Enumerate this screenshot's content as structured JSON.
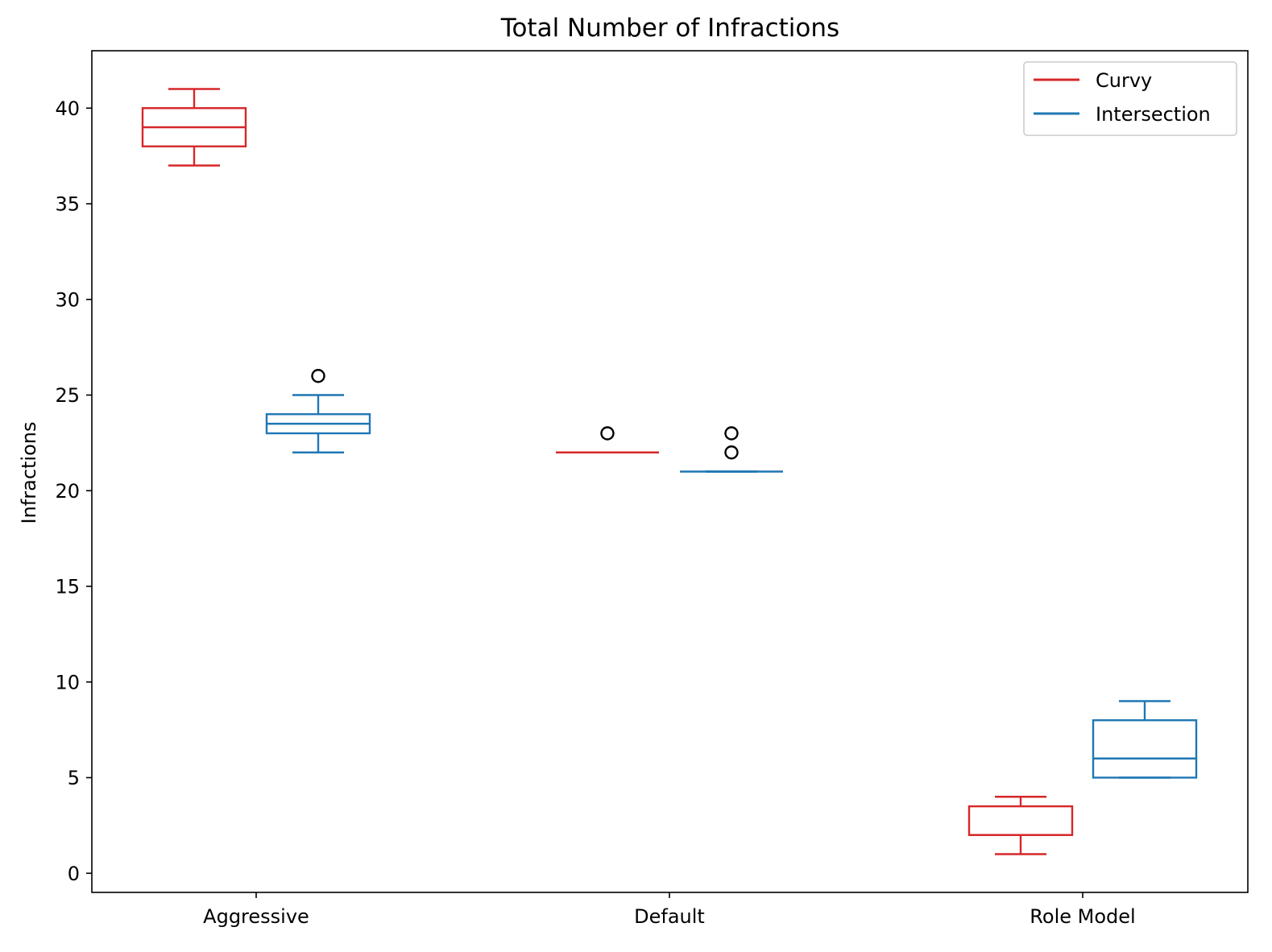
{
  "chart_data": {
    "type": "box",
    "title": "Total Number of Infractions",
    "xlabel": "",
    "ylabel": "Infractions",
    "categories": [
      "Aggressive",
      "Default",
      "Role Model"
    ],
    "ylim": [
      -1,
      43
    ],
    "yticks": [
      0,
      5,
      10,
      15,
      20,
      25,
      30,
      35,
      40
    ],
    "grid": false,
    "legend": {
      "position": "top-right",
      "entries": [
        {
          "name": "Curvy",
          "color": "#d62728"
        },
        {
          "name": "Intersection",
          "color": "#1f77b4"
        }
      ]
    },
    "series": [
      {
        "name": "Curvy",
        "color": "#d62728",
        "boxes": [
          {
            "category": "Aggressive",
            "whisker_low": 37,
            "q1": 38,
            "median": 39,
            "q3": 40,
            "whisker_high": 41,
            "outliers": []
          },
          {
            "category": "Default",
            "whisker_low": 22,
            "q1": 22,
            "median": 22,
            "q3": 22,
            "whisker_high": 22,
            "outliers": [
              23
            ]
          },
          {
            "category": "Role Model",
            "whisker_low": 1,
            "q1": 2,
            "median": 2,
            "q3": 3.5,
            "whisker_high": 4,
            "outliers": []
          }
        ]
      },
      {
        "name": "Intersection",
        "color": "#1f77b4",
        "boxes": [
          {
            "category": "Aggressive",
            "whisker_low": 22,
            "q1": 23,
            "median": 23.5,
            "q3": 24,
            "whisker_high": 25,
            "outliers": [
              26
            ]
          },
          {
            "category": "Default",
            "whisker_low": 21,
            "q1": 21,
            "median": 21,
            "q3": 21,
            "whisker_high": 21,
            "outliers": [
              22,
              23
            ]
          },
          {
            "category": "Role Model",
            "whisker_low": 5,
            "q1": 5,
            "median": 6,
            "q3": 8,
            "whisker_high": 9,
            "outliers": []
          }
        ]
      }
    ]
  }
}
